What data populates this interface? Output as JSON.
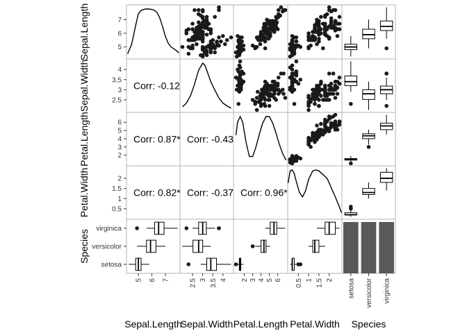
{
  "chart_data": {
    "type": "scatter-matrix",
    "variables": [
      "Sepal.Length",
      "Sepal.Width",
      "Petal.Length",
      "Petal.Width",
      "Species"
    ],
    "species": [
      "setosa",
      "versicolor",
      "virginica"
    ],
    "colors": {
      "panel_border": "#b3b3b3",
      "points": "#1a1a1a",
      "bar_fill": "#595959",
      "line": "#000000",
      "box_fill": "#ffffff"
    },
    "ranges": {
      "Sepal.Length": [
        4.12,
        8.08
      ],
      "Sepal.Width": [
        1.88,
        4.52
      ],
      "Petal.Length": [
        0.705,
        7.195
      ],
      "Petal.Width": [
        -0.02,
        2.62
      ]
    },
    "ticks": {
      "Sepal.Length": {
        "values": [
          5,
          6,
          7
        ],
        "labels": [
          "5",
          "6",
          "7"
        ]
      },
      "Sepal.Width": {
        "values": [
          2.5,
          3,
          3.5,
          4
        ],
        "labels": [
          "2.5",
          "3",
          "3.5",
          "4"
        ]
      },
      "Petal.Length": {
        "values": [
          2,
          3,
          4,
          5,
          6
        ],
        "labels": [
          "2",
          "3",
          "4",
          "5",
          "6"
        ]
      },
      "Petal.Width": {
        "values": [
          0.5,
          1,
          1.5,
          2
        ],
        "labels": [
          "0.5",
          "1",
          "1.5",
          "2"
        ]
      },
      "Species": {
        "labels": [
          "setosa",
          "versicolor",
          "virginica"
        ]
      }
    },
    "correlations": [
      {
        "row": "Sepal.Width",
        "col": "Sepal.Length",
        "text": "Corr: -0.12"
      },
      {
        "row": "Petal.Length",
        "col": "Sepal.Length",
        "text": "Corr: 0.87*"
      },
      {
        "row": "Petal.Length",
        "col": "Sepal.Width",
        "text": "Corr: -0.43"
      },
      {
        "row": "Petal.Width",
        "col": "Sepal.Length",
        "text": "Corr: 0.82*"
      },
      {
        "row": "Petal.Width",
        "col": "Sepal.Width",
        "text": "Corr: -0.37"
      },
      {
        "row": "Petal.Width",
        "col": "Petal.Length",
        "text": "Corr: 0.96*"
      }
    ],
    "boxplots": {
      "Sepal.Length": [
        {
          "species": "setosa",
          "min": 4.3,
          "q1": 4.8,
          "median": 5.0,
          "q3": 5.2,
          "max": 5.8,
          "outliers": []
        },
        {
          "species": "versicolor",
          "min": 4.9,
          "q1": 5.6,
          "median": 5.9,
          "q3": 6.3,
          "max": 7.0,
          "outliers": []
        },
        {
          "species": "virginica",
          "min": 5.6,
          "q1": 6.2,
          "median": 6.5,
          "q3": 6.9,
          "max": 7.9,
          "outliers": [
            4.9
          ]
        }
      ],
      "Sepal.Width": [
        {
          "species": "setosa",
          "min": 2.9,
          "q1": 3.2,
          "median": 3.4,
          "q3": 3.68,
          "max": 4.4,
          "outliers": [
            2.3
          ]
        },
        {
          "species": "versicolor",
          "min": 2.0,
          "q1": 2.52,
          "median": 2.8,
          "q3": 3.0,
          "max": 3.4,
          "outliers": []
        },
        {
          "species": "virginica",
          "min": 2.5,
          "q1": 2.8,
          "median": 3.0,
          "q3": 3.18,
          "max": 3.6,
          "outliers": [
            2.2,
            3.8,
            3.8
          ]
        }
      ],
      "Petal.Length": [
        {
          "species": "setosa",
          "min": 1.1,
          "q1": 1.4,
          "median": 1.5,
          "q3": 1.58,
          "max": 1.9,
          "outliers": [
            1.0
          ]
        },
        {
          "species": "versicolor",
          "min": 3.3,
          "q1": 4.0,
          "median": 4.35,
          "q3": 4.6,
          "max": 5.1,
          "outliers": [
            3.0
          ]
        },
        {
          "species": "virginica",
          "min": 4.5,
          "q1": 5.1,
          "median": 5.55,
          "q3": 5.88,
          "max": 6.9,
          "outliers": []
        }
      ],
      "Petal.Width": [
        {
          "species": "setosa",
          "min": 0.1,
          "q1": 0.2,
          "median": 0.2,
          "q3": 0.3,
          "max": 0.4,
          "outliers": [
            0.5,
            0.6
          ]
        },
        {
          "species": "versicolor",
          "min": 1.0,
          "q1": 1.2,
          "median": 1.3,
          "q3": 1.5,
          "max": 1.8,
          "outliers": []
        },
        {
          "species": "virginica",
          "min": 1.4,
          "q1": 1.8,
          "median": 2.0,
          "q3": 2.3,
          "max": 2.5,
          "outliers": []
        }
      ]
    },
    "species_counts": [
      50,
      50,
      50
    ],
    "density_curves": {
      "Sepal.Length": [
        [
          4.2,
          0.05
        ],
        [
          4.5,
          0.25
        ],
        [
          4.8,
          0.65
        ],
        [
          5.0,
          0.9
        ],
        [
          5.2,
          0.97
        ],
        [
          5.5,
          1.0
        ],
        [
          5.8,
          1.0
        ],
        [
          6.0,
          0.99
        ],
        [
          6.2,
          0.97
        ],
        [
          6.4,
          0.92
        ],
        [
          6.6,
          0.8
        ],
        [
          6.8,
          0.62
        ],
        [
          7.0,
          0.42
        ],
        [
          7.2,
          0.28
        ],
        [
          7.4,
          0.2
        ],
        [
          7.6,
          0.16
        ],
        [
          7.8,
          0.12
        ],
        [
          8.0,
          0.07
        ]
      ],
      "Sepal.Width": [
        [
          2.0,
          0.06
        ],
        [
          2.2,
          0.14
        ],
        [
          2.4,
          0.3
        ],
        [
          2.6,
          0.55
        ],
        [
          2.8,
          0.85
        ],
        [
          3.0,
          1.0
        ],
        [
          3.1,
          0.96
        ],
        [
          3.2,
          0.85
        ],
        [
          3.4,
          0.6
        ],
        [
          3.6,
          0.42
        ],
        [
          3.8,
          0.25
        ],
        [
          4.0,
          0.14
        ],
        [
          4.2,
          0.08
        ],
        [
          4.4,
          0.03
        ]
      ],
      "Petal.Length": [
        [
          1.0,
          0.6
        ],
        [
          1.2,
          0.88
        ],
        [
          1.5,
          1.0
        ],
        [
          1.8,
          0.88
        ],
        [
          2.2,
          0.45
        ],
        [
          2.6,
          0.14
        ],
        [
          3.0,
          0.14
        ],
        [
          3.4,
          0.35
        ],
        [
          3.8,
          0.62
        ],
        [
          4.2,
          0.86
        ],
        [
          4.6,
          1.0
        ],
        [
          5.0,
          1.0
        ],
        [
          5.4,
          0.86
        ],
        [
          5.8,
          0.64
        ],
        [
          6.2,
          0.4
        ],
        [
          6.6,
          0.2
        ],
        [
          7.0,
          0.06
        ]
      ],
      "Petal.Width": [
        [
          0.0,
          0.72
        ],
        [
          0.1,
          0.98
        ],
        [
          0.2,
          1.0
        ],
        [
          0.3,
          0.92
        ],
        [
          0.4,
          0.75
        ],
        [
          0.55,
          0.52
        ],
        [
          0.7,
          0.42
        ],
        [
          0.85,
          0.55
        ],
        [
          1.0,
          0.8
        ],
        [
          1.2,
          0.98
        ],
        [
          1.35,
          1.0
        ],
        [
          1.5,
          0.98
        ],
        [
          1.7,
          0.9
        ],
        [
          1.9,
          0.82
        ],
        [
          2.1,
          0.62
        ],
        [
          2.3,
          0.42
        ],
        [
          2.5,
          0.2
        ],
        [
          2.6,
          0.08
        ]
      ]
    },
    "points": [
      [
        5.1,
        3.5,
        1.4,
        0.2
      ],
      [
        4.9,
        3.0,
        1.4,
        0.2
      ],
      [
        4.7,
        3.2,
        1.3,
        0.2
      ],
      [
        4.6,
        3.1,
        1.5,
        0.2
      ],
      [
        5.0,
        3.6,
        1.4,
        0.2
      ],
      [
        5.4,
        3.9,
        1.7,
        0.4
      ],
      [
        4.6,
        3.4,
        1.4,
        0.3
      ],
      [
        5.0,
        3.4,
        1.5,
        0.2
      ],
      [
        4.4,
        2.9,
        1.4,
        0.2
      ],
      [
        4.9,
        3.1,
        1.5,
        0.1
      ],
      [
        5.4,
        3.7,
        1.5,
        0.2
      ],
      [
        4.8,
        3.4,
        1.6,
        0.2
      ],
      [
        4.8,
        3.0,
        1.4,
        0.1
      ],
      [
        4.3,
        3.0,
        1.1,
        0.1
      ],
      [
        5.8,
        4.0,
        1.2,
        0.2
      ],
      [
        5.7,
        4.4,
        1.5,
        0.4
      ],
      [
        5.4,
        3.9,
        1.3,
        0.4
      ],
      [
        5.1,
        3.5,
        1.4,
        0.3
      ],
      [
        5.7,
        3.8,
        1.7,
        0.3
      ],
      [
        5.1,
        3.8,
        1.5,
        0.3
      ],
      [
        5.4,
        3.4,
        1.7,
        0.2
      ],
      [
        5.1,
        3.7,
        1.5,
        0.4
      ],
      [
        4.6,
        3.6,
        1.0,
        0.2
      ],
      [
        5.1,
        3.3,
        1.7,
        0.5
      ],
      [
        4.8,
        3.4,
        1.9,
        0.2
      ],
      [
        5.0,
        3.0,
        1.6,
        0.2
      ],
      [
        5.0,
        3.4,
        1.6,
        0.4
      ],
      [
        5.2,
        3.5,
        1.5,
        0.2
      ],
      [
        5.2,
        3.4,
        1.4,
        0.2
      ],
      [
        4.7,
        3.2,
        1.6,
        0.2
      ],
      [
        4.8,
        3.1,
        1.6,
        0.2
      ],
      [
        5.4,
        3.4,
        1.5,
        0.4
      ],
      [
        5.2,
        4.1,
        1.5,
        0.1
      ],
      [
        5.5,
        4.2,
        1.4,
        0.2
      ],
      [
        4.9,
        3.1,
        1.5,
        0.2
      ],
      [
        5.0,
        3.2,
        1.2,
        0.2
      ],
      [
        5.5,
        3.5,
        1.3,
        0.2
      ],
      [
        4.9,
        3.6,
        1.4,
        0.1
      ],
      [
        4.4,
        3.0,
        1.3,
        0.2
      ],
      [
        5.1,
        3.4,
        1.5,
        0.2
      ],
      [
        5.0,
        3.5,
        1.3,
        0.3
      ],
      [
        4.5,
        2.3,
        1.3,
        0.3
      ],
      [
        4.4,
        3.2,
        1.3,
        0.2
      ],
      [
        5.0,
        3.5,
        1.6,
        0.6
      ],
      [
        5.1,
        3.8,
        1.9,
        0.4
      ],
      [
        4.8,
        3.0,
        1.4,
        0.3
      ],
      [
        5.1,
        3.8,
        1.6,
        0.2
      ],
      [
        4.6,
        3.2,
        1.4,
        0.2
      ],
      [
        5.3,
        3.7,
        1.5,
        0.2
      ],
      [
        5.0,
        3.3,
        1.4,
        0.2
      ],
      [
        7.0,
        3.2,
        4.7,
        1.4
      ],
      [
        6.4,
        3.2,
        4.5,
        1.5
      ],
      [
        6.9,
        3.1,
        4.9,
        1.5
      ],
      [
        5.5,
        2.3,
        4.0,
        1.3
      ],
      [
        6.5,
        2.8,
        4.6,
        1.5
      ],
      [
        5.7,
        2.8,
        4.5,
        1.3
      ],
      [
        6.3,
        3.3,
        4.7,
        1.6
      ],
      [
        4.9,
        2.4,
        3.3,
        1.0
      ],
      [
        6.6,
        2.9,
        4.6,
        1.3
      ],
      [
        5.2,
        2.7,
        3.9,
        1.4
      ],
      [
        5.0,
        2.0,
        3.5,
        1.0
      ],
      [
        5.9,
        3.0,
        4.2,
        1.5
      ],
      [
        6.0,
        2.2,
        4.0,
        1.0
      ],
      [
        6.1,
        2.9,
        4.7,
        1.4
      ],
      [
        5.6,
        2.9,
        3.6,
        1.3
      ],
      [
        6.7,
        3.1,
        4.4,
        1.4
      ],
      [
        5.6,
        3.0,
        4.5,
        1.5
      ],
      [
        5.8,
        2.7,
        4.1,
        1.0
      ],
      [
        6.2,
        2.2,
        4.5,
        1.5
      ],
      [
        5.6,
        2.5,
        3.9,
        1.1
      ],
      [
        5.9,
        3.2,
        4.8,
        1.8
      ],
      [
        6.1,
        2.8,
        4.0,
        1.3
      ],
      [
        6.3,
        2.5,
        4.9,
        1.5
      ],
      [
        6.1,
        2.8,
        4.7,
        1.2
      ],
      [
        6.4,
        2.9,
        4.3,
        1.3
      ],
      [
        6.6,
        3.0,
        4.4,
        1.4
      ],
      [
        6.8,
        2.8,
        4.8,
        1.4
      ],
      [
        6.7,
        3.0,
        5.0,
        1.7
      ],
      [
        6.0,
        2.9,
        4.5,
        1.5
      ],
      [
        5.7,
        2.6,
        3.5,
        1.0
      ],
      [
        5.5,
        2.4,
        3.8,
        1.1
      ],
      [
        5.5,
        2.4,
        3.7,
        1.0
      ],
      [
        5.8,
        2.7,
        3.9,
        1.2
      ],
      [
        6.0,
        2.7,
        5.1,
        1.6
      ],
      [
        5.4,
        3.0,
        4.5,
        1.5
      ],
      [
        6.0,
        3.4,
        4.5,
        1.6
      ],
      [
        6.7,
        3.1,
        4.7,
        1.5
      ],
      [
        6.3,
        2.3,
        4.4,
        1.3
      ],
      [
        5.6,
        3.0,
        4.1,
        1.3
      ],
      [
        5.5,
        2.5,
        4.0,
        1.3
      ],
      [
        5.5,
        2.6,
        4.4,
        1.2
      ],
      [
        6.1,
        3.0,
        4.6,
        1.4
      ],
      [
        5.8,
        2.6,
        4.0,
        1.2
      ],
      [
        5.0,
        2.3,
        3.3,
        1.0
      ],
      [
        5.6,
        2.7,
        4.2,
        1.3
      ],
      [
        5.7,
        3.0,
        4.2,
        1.2
      ],
      [
        5.7,
        2.9,
        4.2,
        1.3
      ],
      [
        6.2,
        2.9,
        4.3,
        1.3
      ],
      [
        5.1,
        2.5,
        3.0,
        1.1
      ],
      [
        5.7,
        2.8,
        4.1,
        1.3
      ],
      [
        6.3,
        3.3,
        6.0,
        2.5
      ],
      [
        5.8,
        2.7,
        5.1,
        1.9
      ],
      [
        7.1,
        3.0,
        5.9,
        2.1
      ],
      [
        6.3,
        2.9,
        5.6,
        1.8
      ],
      [
        6.5,
        3.0,
        5.8,
        2.2
      ],
      [
        7.6,
        3.0,
        6.6,
        2.1
      ],
      [
        4.9,
        2.5,
        4.5,
        1.7
      ],
      [
        7.3,
        2.9,
        6.3,
        1.8
      ],
      [
        6.7,
        2.5,
        5.8,
        1.8
      ],
      [
        7.2,
        3.6,
        6.1,
        2.5
      ],
      [
        6.5,
        3.2,
        5.1,
        2.0
      ],
      [
        6.4,
        2.7,
        5.3,
        1.9
      ],
      [
        6.8,
        3.0,
        5.5,
        2.1
      ],
      [
        5.7,
        2.5,
        5.0,
        2.0
      ],
      [
        5.8,
        2.8,
        5.1,
        2.4
      ],
      [
        6.4,
        3.2,
        5.3,
        2.3
      ],
      [
        6.5,
        3.0,
        5.5,
        1.8
      ],
      [
        7.7,
        3.8,
        6.7,
        2.2
      ],
      [
        7.7,
        2.6,
        6.9,
        2.3
      ],
      [
        6.0,
        2.2,
        5.0,
        1.5
      ],
      [
        6.9,
        3.2,
        5.7,
        2.3
      ],
      [
        5.6,
        2.8,
        4.9,
        2.0
      ],
      [
        7.7,
        2.8,
        6.7,
        2.0
      ],
      [
        6.3,
        2.7,
        4.9,
        1.8
      ],
      [
        6.7,
        3.3,
        5.7,
        2.1
      ],
      [
        7.2,
        3.2,
        6.0,
        1.8
      ],
      [
        6.2,
        2.8,
        4.8,
        1.8
      ],
      [
        6.1,
        3.0,
        4.9,
        1.8
      ],
      [
        6.4,
        2.8,
        5.6,
        2.1
      ],
      [
        7.2,
        3.0,
        5.8,
        1.6
      ],
      [
        7.4,
        2.8,
        6.1,
        1.9
      ],
      [
        7.9,
        3.8,
        6.4,
        2.0
      ],
      [
        6.4,
        2.8,
        5.6,
        2.2
      ],
      [
        6.3,
        2.8,
        5.1,
        1.5
      ],
      [
        6.1,
        2.6,
        5.6,
        1.4
      ],
      [
        7.7,
        3.0,
        6.1,
        2.3
      ],
      [
        6.3,
        3.4,
        5.6,
        2.4
      ],
      [
        6.4,
        3.1,
        5.5,
        1.8
      ],
      [
        6.0,
        3.0,
        4.8,
        1.8
      ],
      [
        6.9,
        3.1,
        5.4,
        2.1
      ],
      [
        6.7,
        3.1,
        5.6,
        2.4
      ],
      [
        6.9,
        3.1,
        5.1,
        2.3
      ],
      [
        5.8,
        2.7,
        5.1,
        1.9
      ],
      [
        6.8,
        3.2,
        5.9,
        2.3
      ],
      [
        6.7,
        3.3,
        5.7,
        2.5
      ],
      [
        6.7,
        3.0,
        5.2,
        2.3
      ],
      [
        6.3,
        2.5,
        5.0,
        1.9
      ],
      [
        6.5,
        3.0,
        5.2,
        2.0
      ],
      [
        6.2,
        3.4,
        5.4,
        2.3
      ],
      [
        5.9,
        3.0,
        5.1,
        1.8
      ]
    ]
  }
}
